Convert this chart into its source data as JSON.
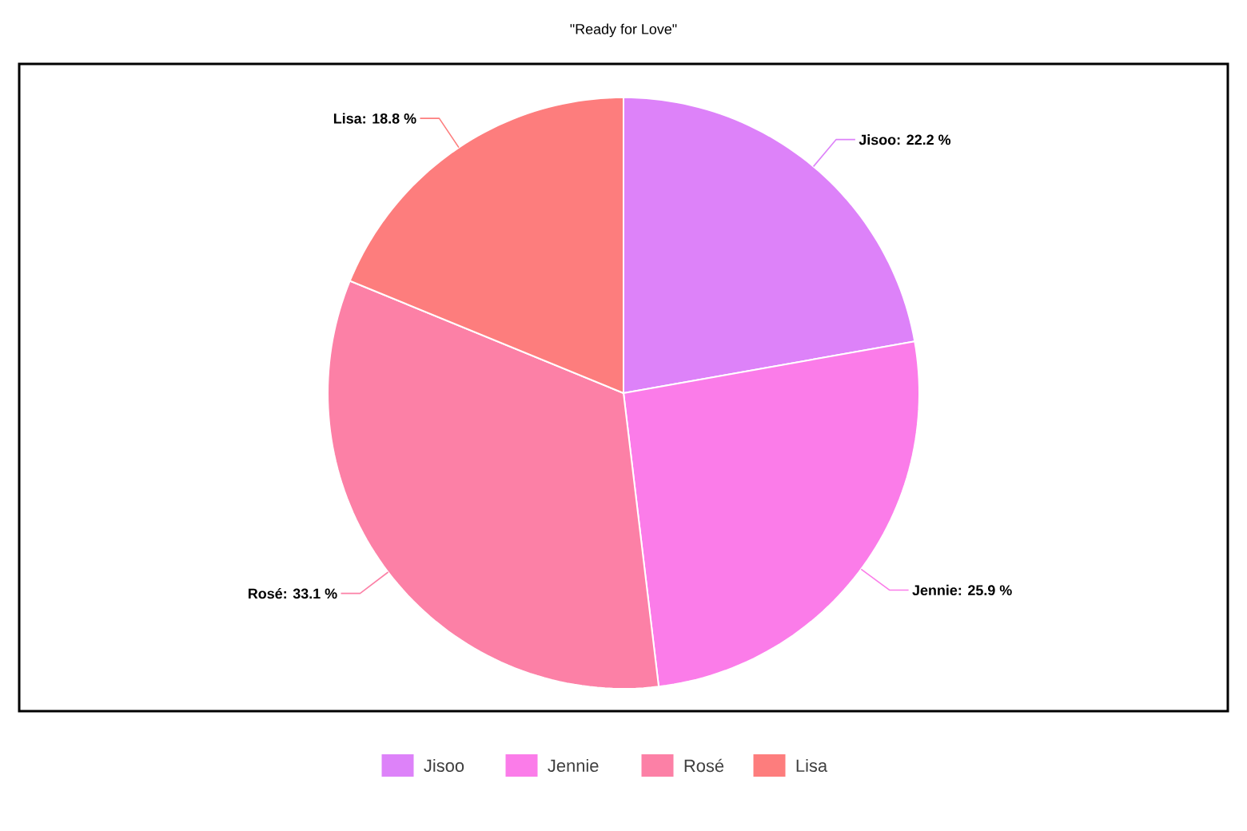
{
  "chart_data": {
    "type": "pie",
    "title": "\"Ready for Love\"",
    "categories": [
      "Jisoo",
      "Jennie",
      "Rosé",
      "Lisa"
    ],
    "values": [
      22.2,
      25.9,
      33.1,
      18.8
    ],
    "value_labels": [
      "Jisoo: 22.2 %",
      "Jennie: 25.9 %",
      "Rosé: 33.1 %",
      "Lisa: 18.8 %"
    ],
    "colors": [
      "#dd82f9",
      "#fb7ce9",
      "#fc80a6",
      "#fd7d7d"
    ],
    "legend": "bottom"
  }
}
